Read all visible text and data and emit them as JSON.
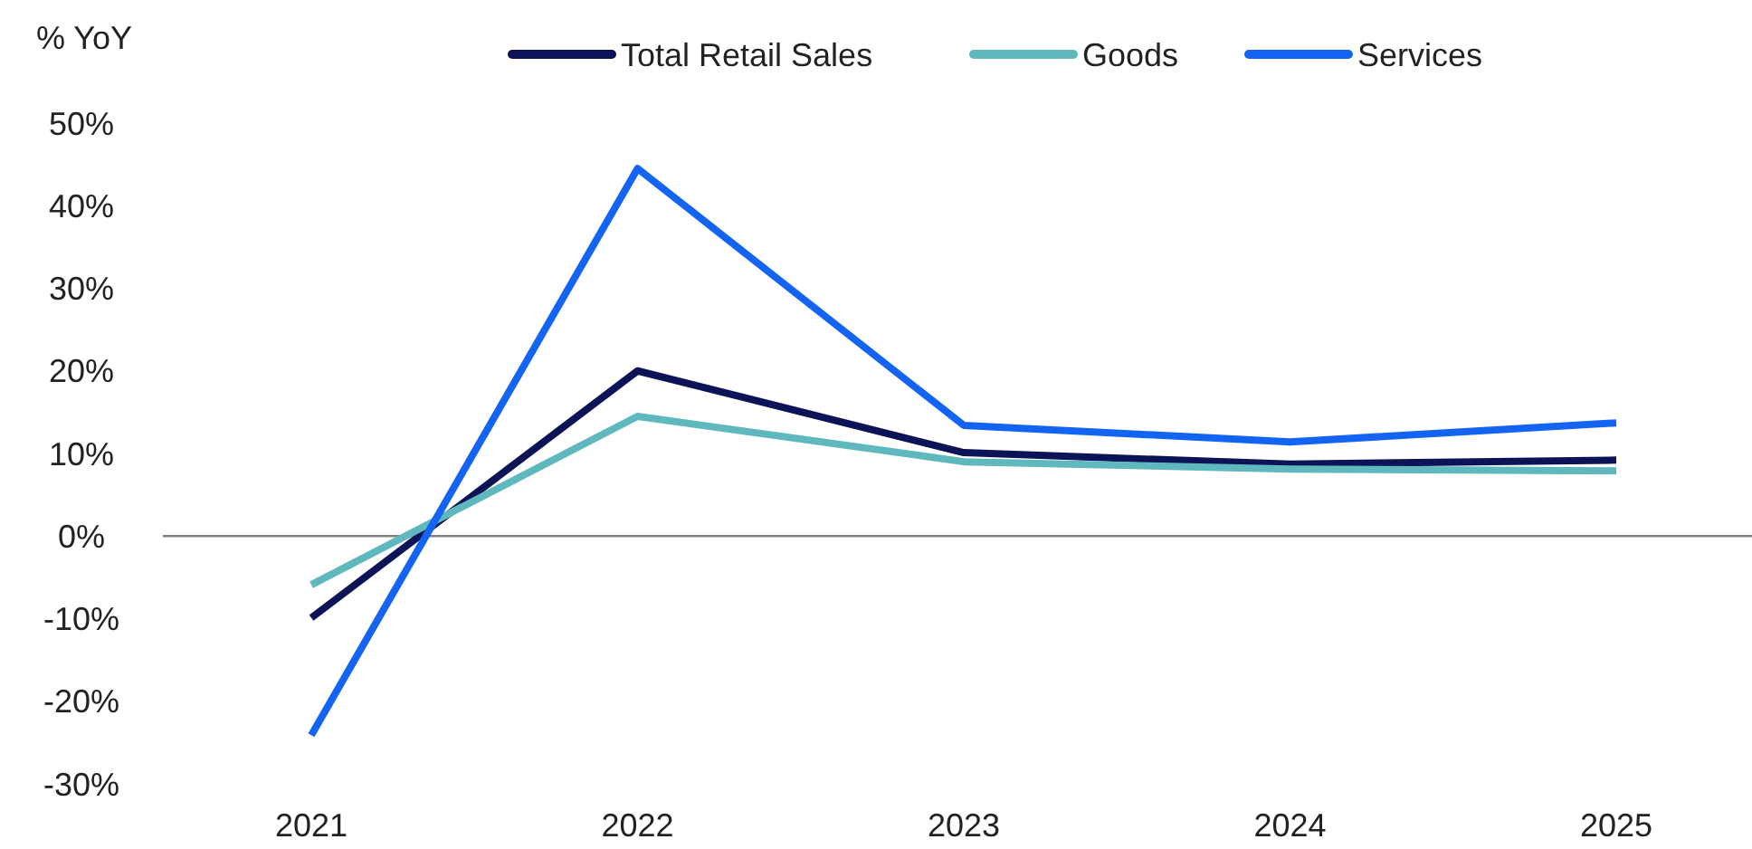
{
  "chart_data": {
    "type": "line",
    "ylabel": "% YoY",
    "categories": [
      "2021",
      "2022",
      "2023",
      "2024",
      "2025"
    ],
    "series": [
      {
        "name": "Total Retail Sales",
        "color": "#0c1457",
        "values": [
          -9.9,
          20,
          10.1,
          8.7,
          9.2
        ]
      },
      {
        "name": "Goods",
        "color": "#5fb8bd",
        "values": [
          -5.9,
          14.5,
          9,
          8.1,
          7.9
        ]
      },
      {
        "name": "Services",
        "color": "#1464f4",
        "values": [
          -24.1,
          44.5,
          13.4,
          11.4,
          13.7
        ]
      }
    ],
    "ylim": [
      -30,
      50
    ],
    "yticks": [
      {
        "value": -30,
        "label": "-30%"
      },
      {
        "value": -20,
        "label": "-20%"
      },
      {
        "value": -10,
        "label": "-10%"
      },
      {
        "value": 0,
        "label": "0%"
      },
      {
        "value": 10,
        "label": "10%"
      },
      {
        "value": 20,
        "label": "20%"
      },
      {
        "value": 30,
        "label": "30%"
      },
      {
        "value": 40,
        "label": "40%"
      },
      {
        "value": 50,
        "label": "50%"
      }
    ],
    "ref_lines": [
      {
        "axis": "y",
        "value": 0,
        "color": "#808080"
      }
    ],
    "grid": false,
    "legend": "top",
    "marker": "none",
    "line_style": "solid"
  }
}
